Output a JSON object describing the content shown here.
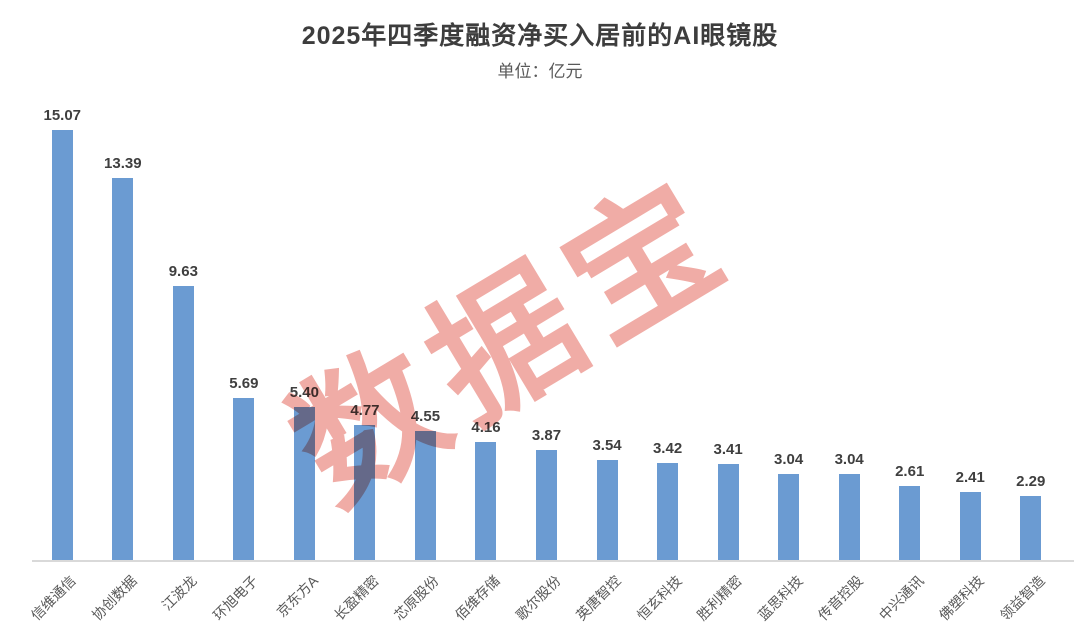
{
  "chart_data": {
    "type": "bar",
    "title": "2025年四季度融资净买入居前的AI眼镜股",
    "unit_label": "单位：亿元",
    "categories": [
      "信维通信",
      "协创数据",
      "江波龙",
      "环旭电子",
      "京东方A",
      "长盈精密",
      "芯原股份",
      "佰维存储",
      "歌尔股份",
      "英唐智控",
      "恒玄科技",
      "胜利精密",
      "蓝思科技",
      "传音控股",
      "中兴通讯",
      "佛塑科技",
      "领益智造"
    ],
    "values": [
      15.07,
      13.39,
      9.63,
      5.69,
      5.4,
      4.77,
      4.55,
      4.16,
      3.87,
      3.54,
      3.42,
      3.41,
      3.04,
      3.04,
      2.61,
      2.41,
      2.29
    ],
    "value_labels": [
      "15.07",
      "13.39",
      "9.63",
      "5.69",
      "5.40",
      "4.77",
      "4.55",
      "4.16",
      "3.87",
      "3.54",
      "3.42",
      "3.41",
      "3.04",
      "3.04",
      "2.61",
      "2.41",
      "2.29"
    ],
    "xlabel": "",
    "ylabel": "",
    "ylim": [
      0,
      16
    ],
    "grid": false,
    "legend": false,
    "bar_color": "#6B9BD2",
    "value_label_color": "#3f3f3f",
    "axis_label_color": "#595959",
    "axis_line_color": "#d9d9d9",
    "watermark_text": "数据宝",
    "watermark_color": "#F0ACA6"
  }
}
